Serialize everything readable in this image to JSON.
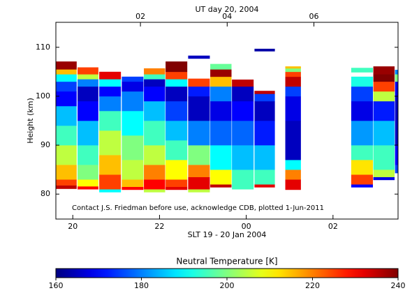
{
  "chart_data": {
    "type": "heatmap",
    "title": "UT day 20, 2004",
    "ylabel": "Height (km)",
    "xlabel": "SLT 19 - 20 Jan 2004",
    "annotation": "Contact J.S. Friedman before use, acknowledge CDB, plotted 1-Jun-2011",
    "colorbar_label": "Neutral Temperature [K]",
    "colormap": "jet",
    "xlim": [
      19.61,
      27.5
    ],
    "xticks": [
      20,
      22,
      {
        "value": 24,
        "label": "00"
      },
      {
        "value": 26,
        "label": "02"
      }
    ],
    "x2ticks": [
      {
        "value": 21.56,
        "label": "02"
      },
      {
        "value": 23.56,
        "label": "04"
      },
      {
        "value": 25.56,
        "label": "06"
      }
    ],
    "ylim": [
      74.9,
      115.1
    ],
    "yticks": [
      80,
      90,
      100,
      110
    ],
    "clim": [
      160,
      240
    ],
    "cticks": [
      160,
      180,
      200,
      220,
      240
    ],
    "columns": [
      {
        "x0": 19.61,
        "x1": 20.09,
        "heights": [
          81.1,
          81.8,
          83,
          86,
          90,
          94,
          98,
          101,
          103,
          104.5,
          105.5,
          107.1
        ],
        "temps": [
          235,
          225,
          215,
          205,
          195,
          185,
          170,
          175,
          190,
          215,
          238
        ]
      },
      {
        "x0": 20.11,
        "x1": 20.59,
        "heights": [
          81,
          81.6,
          83,
          86,
          90,
          95,
          99,
          102,
          103.5,
          104.5,
          105.9
        ],
        "temps": [
          230,
          210,
          200,
          195,
          185,
          170,
          165,
          180,
          205,
          225
        ]
      },
      {
        "x0": 20.61,
        "x1": 21.11,
        "heights": [
          80.4,
          81,
          84,
          88,
          93,
          97,
          100,
          102,
          103.5,
          105
        ],
        "temps": [
          190,
          225,
          215,
          205,
          195,
          180,
          170,
          190,
          232
        ]
      },
      {
        "x0": 21.13,
        "x1": 21.63,
        "heights": [
          80.9,
          81.5,
          83,
          87,
          92,
          97,
          101,
          103,
          104
        ],
        "temps": [
          230,
          215,
          205,
          200,
          190,
          180,
          168,
          175
        ]
      },
      {
        "x0": 21.64,
        "x1": 22.13,
        "heights": [
          80.4,
          81,
          83,
          86,
          90,
          95,
          99,
          102,
          103.5,
          104.5,
          105.7
        ],
        "temps": [
          205,
          230,
          220,
          205,
          195,
          185,
          170,
          165,
          195,
          220
        ]
      },
      {
        "x0": 22.14,
        "x1": 22.64,
        "heights": [
          80.9,
          81.5,
          83,
          87,
          91,
          95,
          99,
          102,
          103.5,
          105,
          107.1
        ],
        "temps": [
          232,
          225,
          210,
          195,
          185,
          175,
          165,
          190,
          225,
          240
        ]
      },
      {
        "x0": 22.66,
        "x1": 23.16,
        "heights": [
          80.4,
          81,
          83.5,
          86,
          90,
          95,
          100,
          102,
          103.6
        ],
        "temps": [
          205,
          232,
          220,
          200,
          180,
          165,
          172,
          225
        ]
      },
      {
        "x0": 22.66,
        "x1": 23.16,
        "heights": [
          107.7,
          108.3
        ],
        "temps": [
          165
        ]
      },
      {
        "x0": 23.17,
        "x1": 23.66,
        "heights": [
          81.4,
          82,
          85,
          90,
          95,
          99,
          102,
          104,
          105.5,
          106.6
        ],
        "temps": [
          235,
          210,
          190,
          178,
          168,
          180,
          215,
          238,
          198
        ]
      },
      {
        "x0": 23.67,
        "x1": 24.17,
        "heights": [
          81,
          85,
          90,
          95,
          99,
          102,
          103.4
        ],
        "temps": [
          195,
          185,
          178,
          170,
          165,
          235
        ]
      },
      {
        "x0": 24.19,
        "x1": 24.66,
        "heights": [
          81.4,
          82,
          85,
          90,
          95,
          99,
          100.5,
          101.1
        ],
        "temps": [
          232,
          195,
          185,
          172,
          165,
          175,
          235
        ]
      },
      {
        "x0": 24.19,
        "x1": 24.66,
        "heights": [
          109.2,
          109.7
        ],
        "temps": [
          163
        ]
      },
      {
        "x0": 24.9,
        "x1": 25.26,
        "heights": [
          80.9,
          83,
          85,
          87,
          95,
          100,
          102,
          104,
          105,
          105.7,
          106.1
        ],
        "temps": [
          232,
          220,
          190,
          165,
          168,
          175,
          235,
          225,
          200,
          215
        ]
      },
      {
        "x0": 26.42,
        "x1": 26.92,
        "heights": [
          81.4,
          82,
          84,
          87,
          90,
          95,
          99,
          102,
          104
        ],
        "temps": [
          170,
          225,
          212,
          195,
          182,
          168,
          175,
          192
        ]
      },
      {
        "x0": 26.42,
        "x1": 26.92,
        "heights": [
          104.9,
          105.8
        ],
        "temps": [
          195
        ]
      },
      {
        "x0": 26.93,
        "x1": 27.42,
        "heights": [
          82.9,
          83.5,
          85,
          90,
          95,
          99,
          101,
          103,
          104.5,
          106.1
        ],
        "temps": [
          168,
          205,
          195,
          185,
          172,
          205,
          225,
          240,
          238
        ]
      },
      {
        "x0": 27.43,
        "x1": 27.5,
        "heights": [
          84.3,
          86,
          90,
          100,
          103,
          104.5,
          105.4
        ],
        "temps": [
          175,
          170,
          165,
          168,
          200,
          180
        ]
      }
    ]
  }
}
